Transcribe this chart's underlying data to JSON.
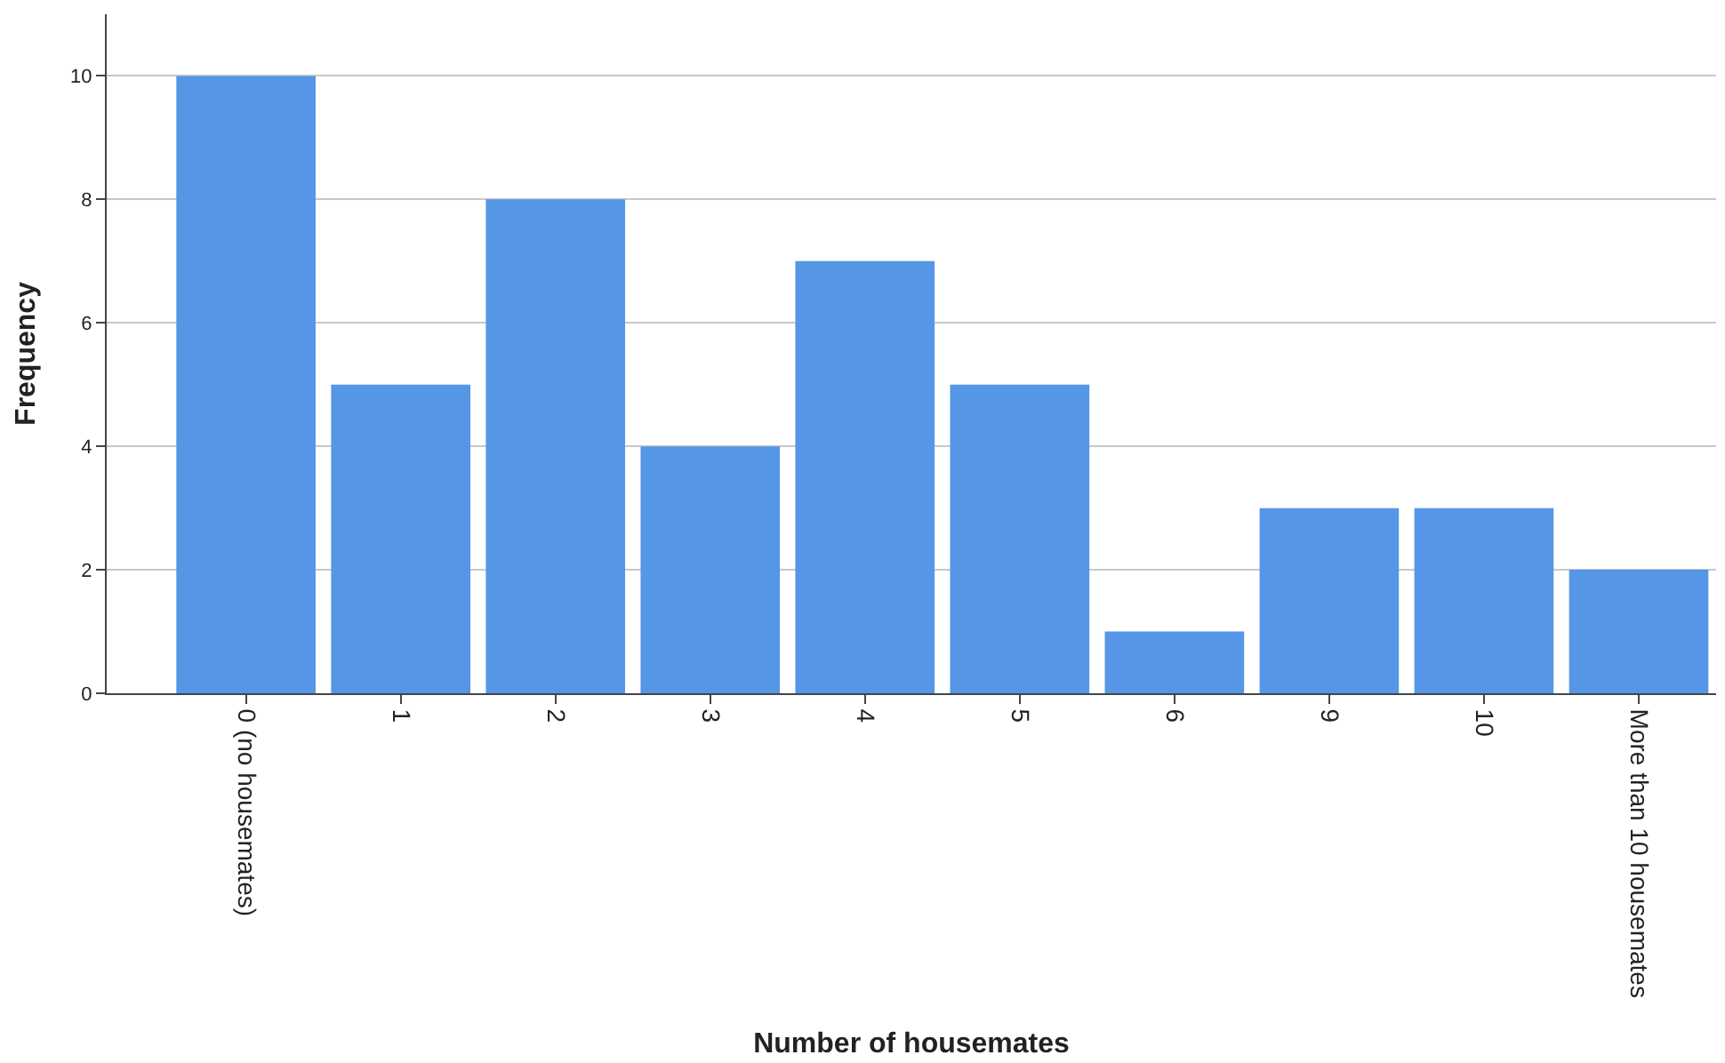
{
  "chart_data": {
    "type": "bar",
    "xlabel": "Number of housemates",
    "ylabel": "Frequency",
    "categories": [
      "0 (no housemates)",
      "1",
      "2",
      "3",
      "4",
      "5",
      "6",
      "9",
      "10",
      "More than 10 housemates"
    ],
    "values": [
      10,
      5,
      8,
      4,
      7,
      5,
      1,
      3,
      3,
      2
    ],
    "color": "#5596e6",
    "ylim": [
      0,
      11
    ],
    "yticks": [
      0,
      2,
      4,
      6,
      8,
      10
    ],
    "grid": "y"
  }
}
